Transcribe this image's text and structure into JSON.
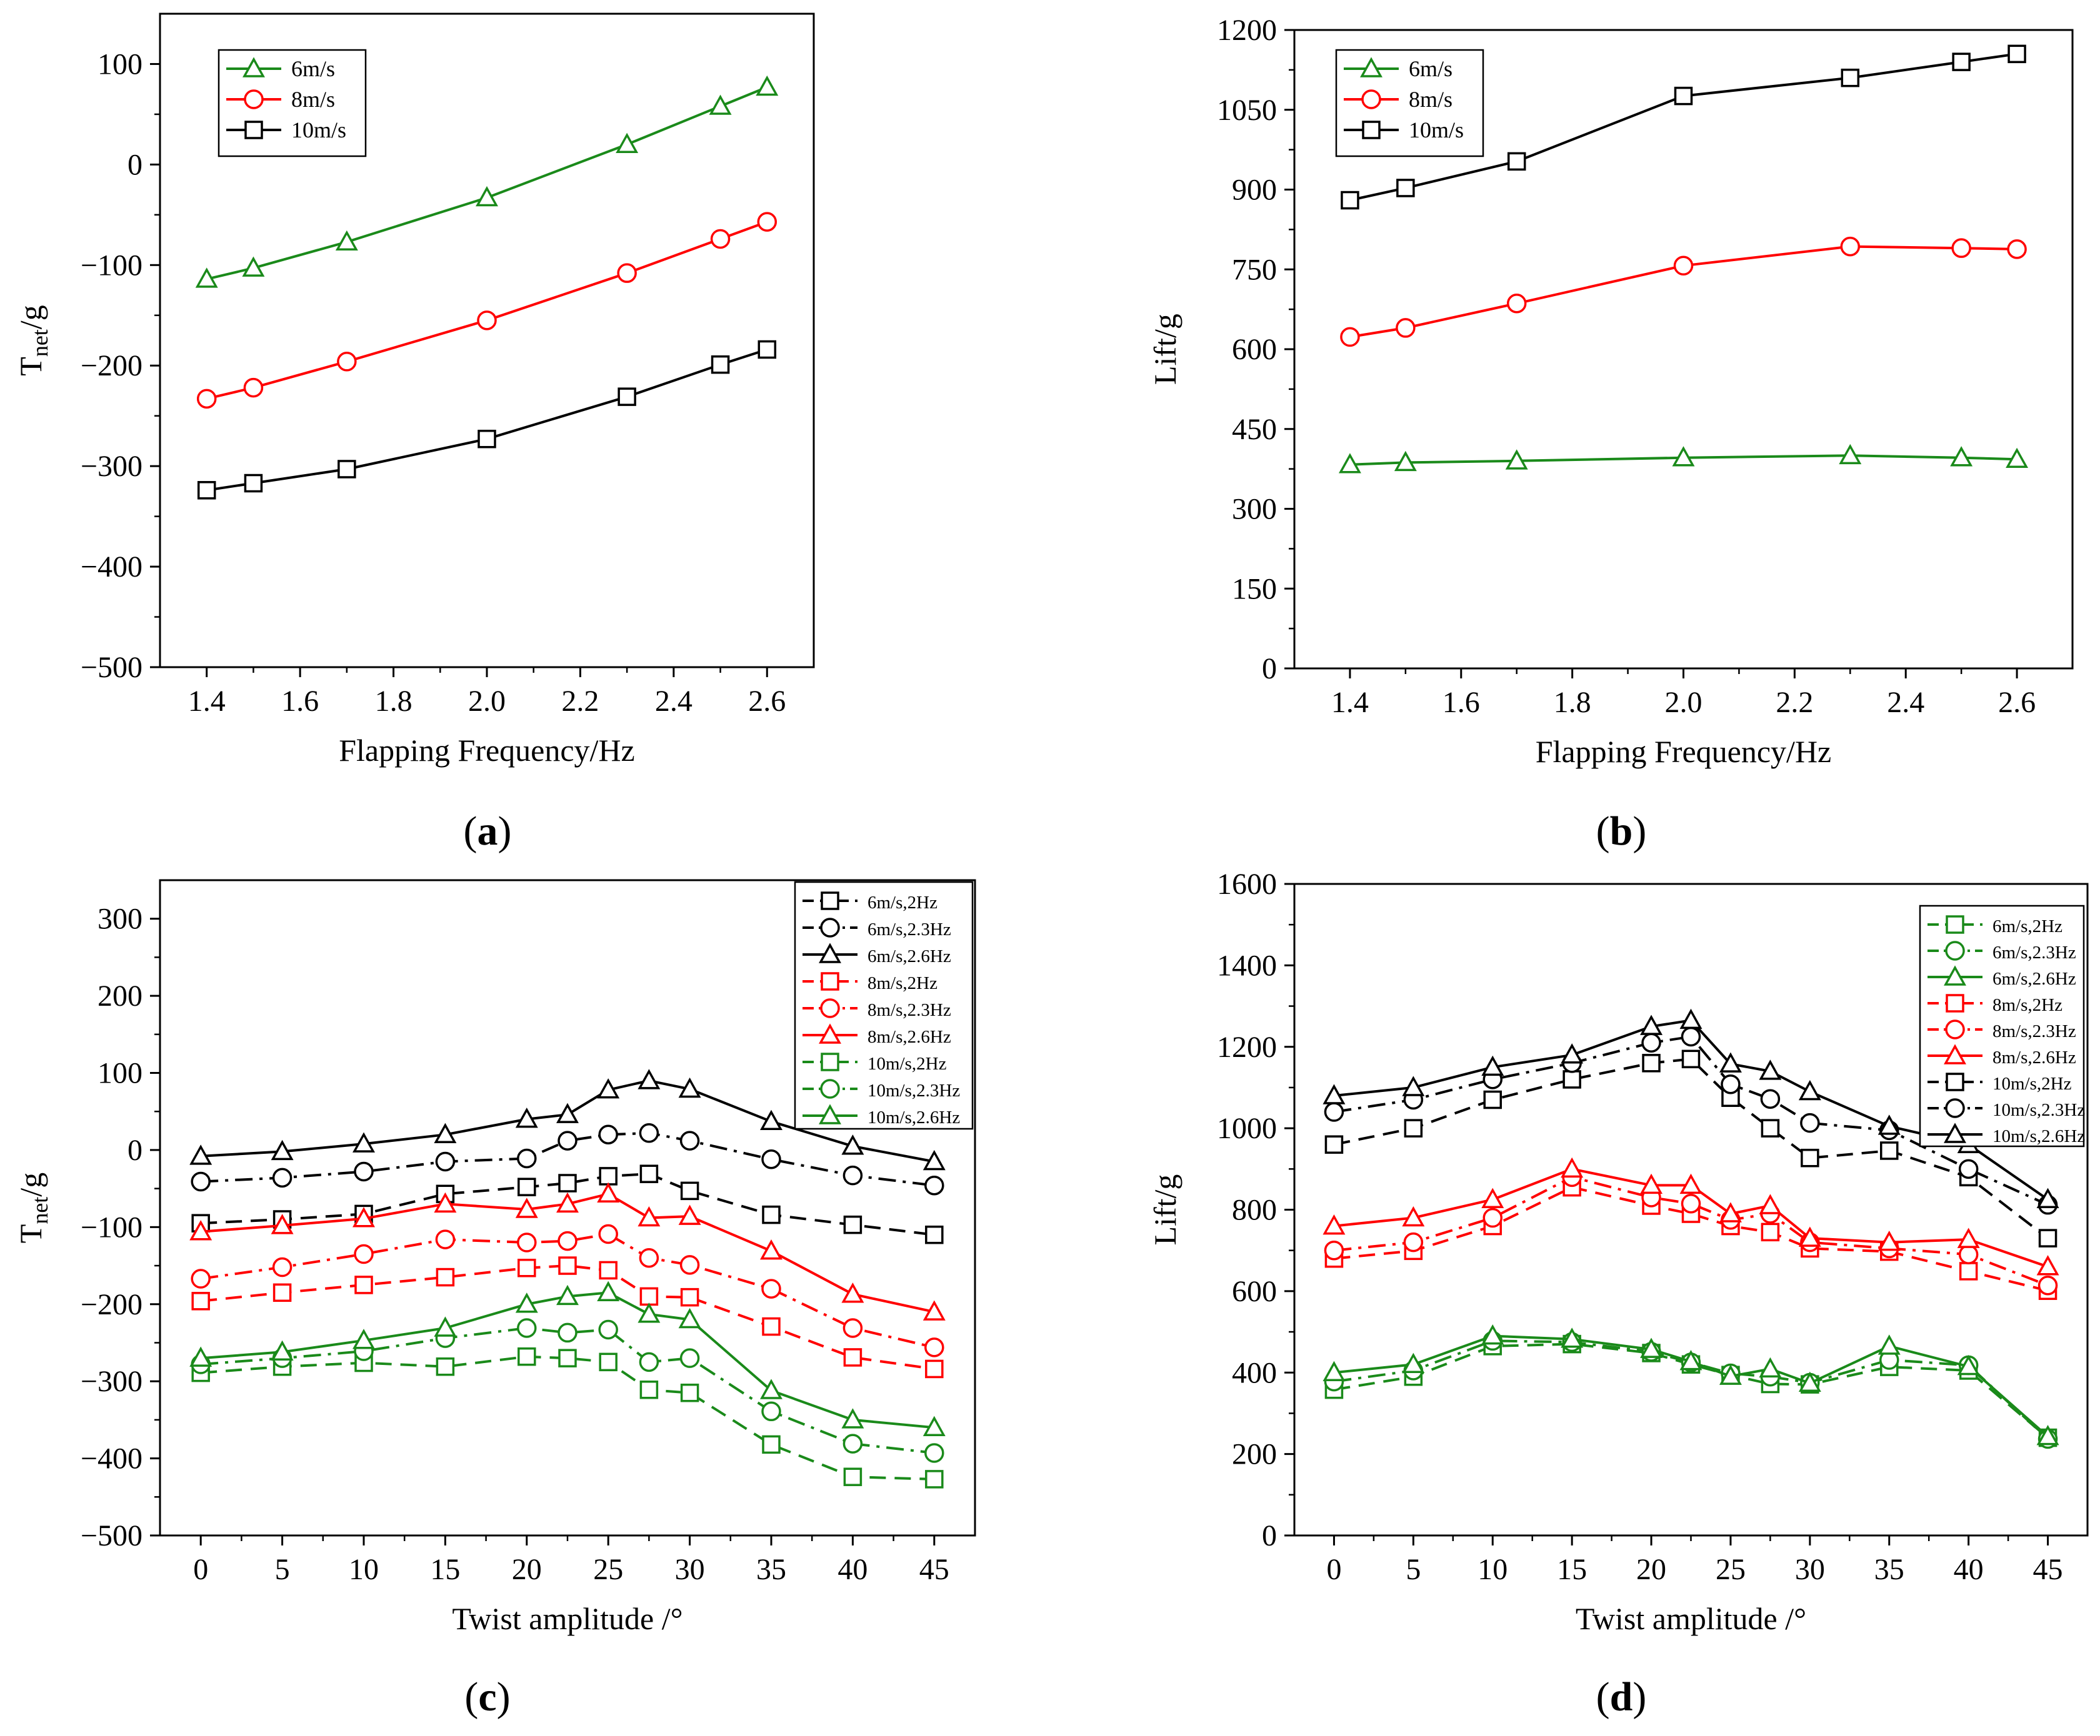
{
  "panels": [
    {
      "label_prefix": "(",
      "label_letter": "a",
      "label_suffix": ")"
    },
    {
      "label_prefix": "(",
      "label_letter": "b",
      "label_suffix": ")"
    },
    {
      "label_prefix": "(",
      "label_letter": "c",
      "label_suffix": ")"
    },
    {
      "label_prefix": "(",
      "label_letter": "d",
      "label_suffix": ")"
    }
  ],
  "chart_data": [
    {
      "type": "line",
      "xlabel": "Flapping Frequency/Hz",
      "ylabel_main": "T",
      "ylabel_sub": "net",
      "ylabel_tail": "/g",
      "xlim": [
        1.3,
        2.7
      ],
      "ylim": [
        -500,
        150
      ],
      "xticks": [
        1.4,
        1.6,
        1.8,
        2.0,
        2.2,
        2.4,
        2.6
      ],
      "xtick_labels": [
        "1.4",
        "1.6",
        "1.8",
        "2.0",
        "2.2",
        "2.4",
        "2.6"
      ],
      "yticks": [
        -500,
        -400,
        -300,
        -200,
        -100,
        0,
        100
      ],
      "ytick_labels": [
        "−500",
        "−400",
        "−300",
        "−200",
        "−100",
        "0",
        "100"
      ],
      "x": [
        1.4,
        1.5,
        1.7,
        2.0,
        2.3,
        2.5,
        2.6
      ],
      "legend_position": "top-left",
      "series": [
        {
          "name": "6m/s",
          "color": "#1a8a1a",
          "marker": "triangle",
          "dash": "solid",
          "values": [
            -114,
            -103,
            -77,
            -33,
            20,
            58,
            77
          ]
        },
        {
          "name": "8m/s",
          "color": "#ff0000",
          "marker": "circle",
          "dash": "solid",
          "values": [
            -233,
            -222,
            -196,
            -155,
            -108,
            -74,
            -57
          ]
        },
        {
          "name": "10m/s",
          "color": "#000000",
          "marker": "square",
          "dash": "solid",
          "values": [
            -324,
            -317,
            -303,
            -273,
            -231,
            -199,
            -184
          ]
        }
      ]
    },
    {
      "type": "line",
      "xlabel": "Flapping Frequency/Hz",
      "ylabel_main": "Lift/g",
      "ylabel_sub": "",
      "ylabel_tail": "",
      "xlim": [
        1.3,
        2.7
      ],
      "ylim": [
        0,
        1200
      ],
      "xticks": [
        1.4,
        1.6,
        1.8,
        2.0,
        2.2,
        2.4,
        2.6
      ],
      "xtick_labels": [
        "1.4",
        "1.6",
        "1.8",
        "2.0",
        "2.2",
        "2.4",
        "2.6"
      ],
      "yticks": [
        0,
        150,
        300,
        450,
        600,
        750,
        900,
        1050,
        1200
      ],
      "ytick_labels": [
        "0",
        "150",
        "300",
        "450",
        "600",
        "750",
        "900",
        "1050",
        "1200"
      ],
      "x": [
        1.4,
        1.5,
        1.7,
        2.0,
        2.3,
        2.5,
        2.6
      ],
      "legend_position": "top-left",
      "series": [
        {
          "name": "6m/s",
          "color": "#1a8a1a",
          "marker": "triangle",
          "dash": "solid",
          "values": [
            383,
            387,
            390,
            396,
            400,
            396,
            393
          ]
        },
        {
          "name": "8m/s",
          "color": "#ff0000",
          "marker": "circle",
          "dash": "solid",
          "values": [
            623,
            640,
            686,
            757,
            793,
            790,
            788
          ]
        },
        {
          "name": "10m/s",
          "color": "#000000",
          "marker": "square",
          "dash": "solid",
          "values": [
            880,
            903,
            953,
            1076,
            1110,
            1140,
            1155
          ]
        }
      ]
    },
    {
      "type": "line",
      "xlabel": "Twist amplitude /°",
      "ylabel_main": "T",
      "ylabel_sub": "net",
      "ylabel_tail": "/g",
      "xlim": [
        -2.5,
        47.5
      ],
      "ylim": [
        -500,
        350
      ],
      "xticks": [
        0,
        5,
        10,
        15,
        20,
        25,
        30,
        35,
        40,
        45
      ],
      "xtick_labels": [
        "0",
        "5",
        "10",
        "15",
        "20",
        "25",
        "30",
        "35",
        "40",
        "45"
      ],
      "yticks": [
        -500,
        -400,
        -300,
        -200,
        -100,
        0,
        100,
        200,
        300
      ],
      "ytick_labels": [
        "−500",
        "−400",
        "−300",
        "−200",
        "−100",
        "0",
        "100",
        "200",
        "300"
      ],
      "x": [
        0,
        5,
        10,
        15,
        20,
        22.5,
        25,
        27.5,
        30,
        35,
        40,
        45
      ],
      "legend_position": "top-right",
      "series": [
        {
          "name": "6m/s,2Hz",
          "color": "#000000",
          "marker": "square",
          "dash": "dash",
          "values": [
            -95,
            -90,
            -83,
            -57,
            -48,
            -43,
            -34,
            -31,
            -53,
            -84,
            -97,
            -110
          ]
        },
        {
          "name": "6m/s,2.3Hz",
          "color": "#000000",
          "marker": "circle",
          "dash": "dashdot",
          "values": [
            -41,
            -36,
            -28,
            -15,
            -11,
            12,
            20,
            22,
            12,
            -12,
            -33,
            -46
          ]
        },
        {
          "name": "6m/s,2.6Hz",
          "color": "#000000",
          "marker": "triangle",
          "dash": "solid",
          "values": [
            -8,
            -2,
            8,
            20,
            40,
            46,
            78,
            90,
            79,
            37,
            5,
            -15
          ]
        },
        {
          "name": "8m/s,2Hz",
          "color": "#ff0000",
          "marker": "square",
          "dash": "dash",
          "values": [
            -196,
            -185,
            -175,
            -165,
            -153,
            -150,
            -156,
            -190,
            -191,
            -229,
            -269,
            -284
          ]
        },
        {
          "name": "8m/s,2.3Hz",
          "color": "#ff0000",
          "marker": "circle",
          "dash": "dashdot",
          "values": [
            -167,
            -152,
            -135,
            -116,
            -120,
            -118,
            -109,
            -140,
            -149,
            -180,
            -231,
            -256
          ]
        },
        {
          "name": "8m/s,2.6Hz",
          "color": "#ff0000",
          "marker": "triangle",
          "dash": "solid",
          "values": [
            -106,
            -98,
            -89,
            -70,
            -77,
            -70,
            -57,
            -88,
            -86,
            -131,
            -187,
            -210
          ]
        },
        {
          "name": "10m/s,2Hz",
          "color": "#1a8a1a",
          "marker": "square",
          "dash": "dash",
          "values": [
            -289,
            -281,
            -276,
            -281,
            -268,
            -270,
            -275,
            -311,
            -315,
            -382,
            -424,
            -427
          ]
        },
        {
          "name": "10m/s,2.3Hz",
          "color": "#1a8a1a",
          "marker": "circle",
          "dash": "dashdot",
          "values": [
            -278,
            -270,
            -261,
            -244,
            -231,
            -237,
            -233,
            -275,
            -270,
            -339,
            -381,
            -393
          ]
        },
        {
          "name": "10m/s,2.6Hz",
          "color": "#1a8a1a",
          "marker": "triangle",
          "dash": "solid",
          "values": [
            -270,
            -262,
            -247,
            -231,
            -200,
            -190,
            -185,
            -213,
            -220,
            -312,
            -350,
            -360
          ]
        }
      ]
    },
    {
      "type": "line",
      "xlabel": "Twist amplitude /°",
      "ylabel_main": "Lift/g",
      "ylabel_sub": "",
      "ylabel_tail": "",
      "xlim": [
        -2.5,
        47.5
      ],
      "ylim": [
        0,
        1600
      ],
      "xticks": [
        0,
        5,
        10,
        15,
        20,
        25,
        30,
        35,
        40,
        45
      ],
      "xtick_labels": [
        "0",
        "5",
        "10",
        "15",
        "20",
        "25",
        "30",
        "35",
        "40",
        "45"
      ],
      "yticks": [
        0,
        200,
        400,
        600,
        800,
        1000,
        1200,
        1400,
        1600
      ],
      "ytick_labels": [
        "0",
        "200",
        "400",
        "600",
        "800",
        "1000",
        "1200",
        "1400",
        "1600"
      ],
      "x": [
        0,
        5,
        10,
        15,
        20,
        22.5,
        25,
        27.5,
        30,
        35,
        40,
        45
      ],
      "legend_position": "top-right",
      "series": [
        {
          "name": "6m/s,2Hz",
          "color": "#1a8a1a",
          "marker": "square",
          "dash": "dash",
          "values": [
            358,
            390,
            465,
            470,
            448,
            420,
            394,
            372,
            371,
            414,
            405,
            240
          ]
        },
        {
          "name": "6m/s,2.3Hz",
          "color": "#1a8a1a",
          "marker": "circle",
          "dash": "dashdot",
          "values": [
            378,
            405,
            478,
            475,
            451,
            425,
            398,
            390,
            375,
            431,
            418,
            237
          ]
        },
        {
          "name": "6m/s,2.6Hz",
          "color": "#1a8a1a",
          "marker": "triangle",
          "dash": "solid",
          "values": [
            400,
            420,
            490,
            482,
            457,
            427,
            391,
            409,
            374,
            465,
            415,
            243
          ]
        },
        {
          "name": "8m/s,2Hz",
          "color": "#ff0000",
          "marker": "square",
          "dash": "dash",
          "values": [
            680,
            699,
            760,
            855,
            810,
            790,
            760,
            745,
            705,
            697,
            649,
            601
          ]
        },
        {
          "name": "8m/s,2.3Hz",
          "color": "#ff0000",
          "marker": "circle",
          "dash": "dashdot",
          "values": [
            700,
            720,
            780,
            880,
            830,
            815,
            775,
            790,
            720,
            705,
            690,
            614
          ]
        },
        {
          "name": "8m/s,2.6Hz",
          "color": "#ff0000",
          "marker": "triangle",
          "dash": "solid",
          "values": [
            760,
            780,
            825,
            900,
            860,
            860,
            790,
            810,
            730,
            720,
            727,
            660
          ]
        },
        {
          "name": "10m/s,2Hz",
          "color": "#000000",
          "marker": "square",
          "dash": "dash",
          "values": [
            960,
            1000,
            1070,
            1120,
            1160,
            1170,
            1075,
            1000,
            927,
            945,
            880,
            730
          ]
        },
        {
          "name": "10m/s,2.3Hz",
          "color": "#000000",
          "marker": "circle",
          "dash": "dashdot",
          "values": [
            1040,
            1070,
            1120,
            1160,
            1210,
            1225,
            1108,
            1072,
            1013,
            995,
            900,
            812
          ]
        },
        {
          "name": "10m/s,2.6Hz",
          "color": "#000000",
          "marker": "triangle",
          "dash": "solid",
          "values": [
            1080,
            1100,
            1150,
            1180,
            1250,
            1265,
            1158,
            1140,
            1090,
            1005,
            960,
            825
          ]
        }
      ]
    }
  ]
}
